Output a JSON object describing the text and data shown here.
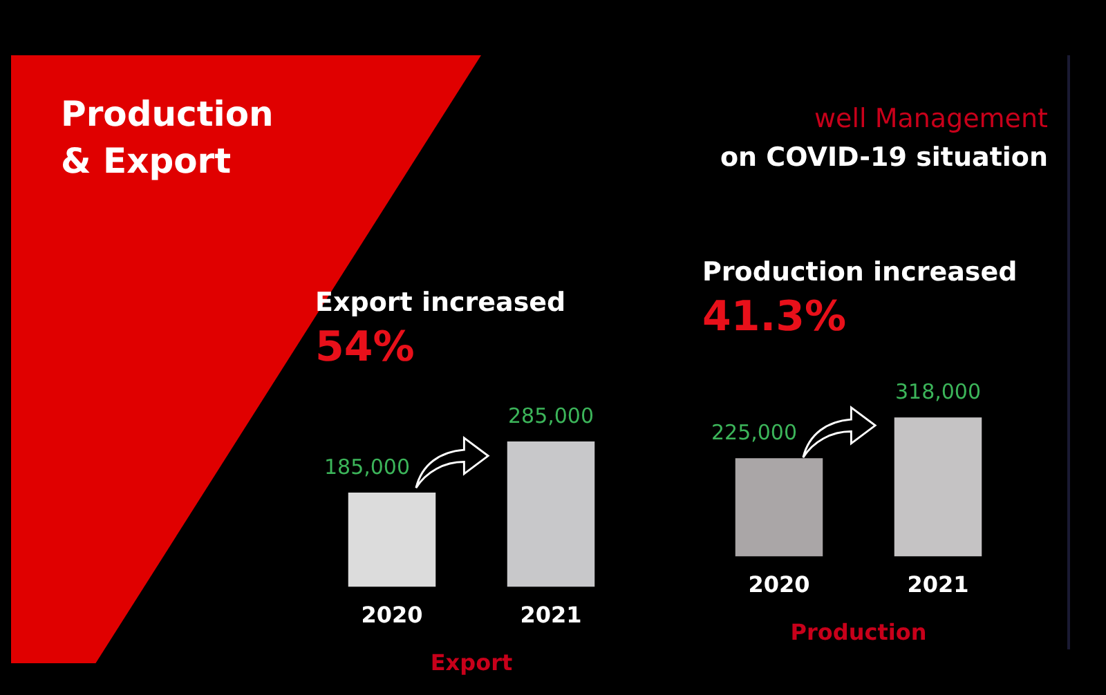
{
  "chart_data": [
    {
      "type": "bar",
      "title": "Export increased",
      "subtitle": "54%",
      "xlabel": "Export",
      "categories": [
        "2020",
        "2021"
      ],
      "values": [
        185000,
        285000
      ],
      "value_labels": [
        "185,000",
        "285,000"
      ],
      "colors": [
        "#dcdcdc",
        "#c8c8ca"
      ],
      "tick_labels": "x",
      "grid": false,
      "legend": false,
      "annotations": [
        "Production\n& Export",
        "well Management\non COVID-19 situation"
      ]
    },
    {
      "type": "bar",
      "title": "Production increased",
      "subtitle": "41.3%",
      "xlabel": "Production",
      "categories": [
        "2020",
        "2021"
      ],
      "values": [
        225000,
        318000
      ],
      "value_labels": [
        "225,000",
        "318,000"
      ],
      "colors": [
        "#aaa6a7",
        "#c5c3c4"
      ],
      "tick_labels": "x",
      "grid": false,
      "legend": false
    }
  ]
}
